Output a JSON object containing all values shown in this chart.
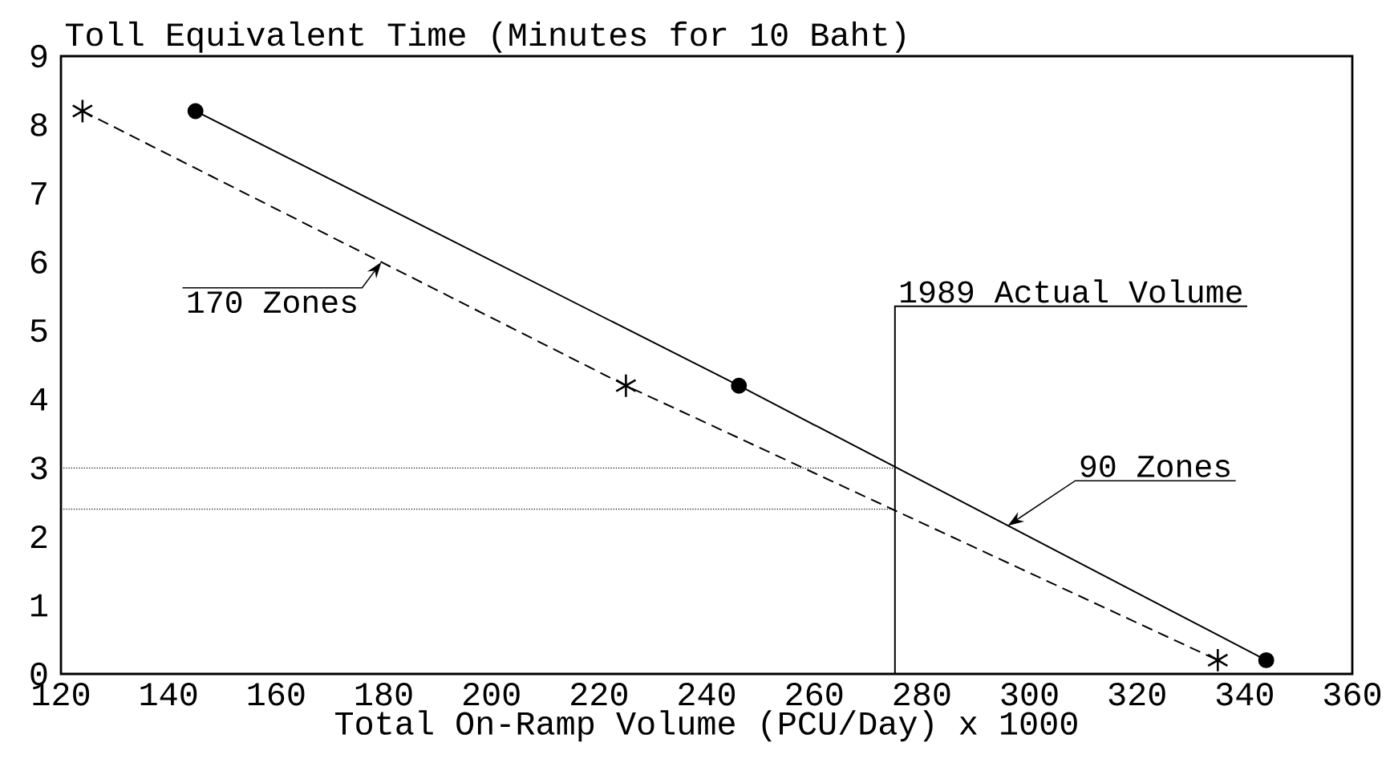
{
  "chart_data": {
    "type": "line",
    "ylabel": "Toll Equivalent Time (Minutes for 10 Baht)",
    "xlabel": "Total On-Ramp Volume (PCU/Day)  x 1000",
    "xlim": [
      120,
      360
    ],
    "ylim": [
      0,
      9
    ],
    "xticks": [
      120,
      140,
      160,
      180,
      200,
      220,
      240,
      260,
      280,
      300,
      320,
      340,
      360
    ],
    "yticks": [
      0,
      1,
      2,
      3,
      4,
      5,
      6,
      7,
      8,
      9
    ],
    "grid": false,
    "series": [
      {
        "name": "90 Zones",
        "color": "#000000",
        "marker": "circle",
        "line_style": "solid",
        "x": [
          145,
          246,
          344
        ],
        "values": [
          8.2,
          4.2,
          0.2
        ]
      },
      {
        "name": "170 Zones",
        "color": "#000000",
        "marker": "cross",
        "line_style": "dashed",
        "x": [
          124,
          225,
          335
        ],
        "values": [
          8.2,
          4.2,
          0.2
        ]
      }
    ],
    "ref_lines": [
      {
        "axis": "x",
        "value": 275,
        "label": "1989 Actual Volume",
        "line_style": "solid"
      },
      {
        "axis": "y",
        "value": 3.0,
        "line_style": "dotted"
      },
      {
        "axis": "y",
        "value": 2.4,
        "line_style": "dotted"
      }
    ]
  }
}
